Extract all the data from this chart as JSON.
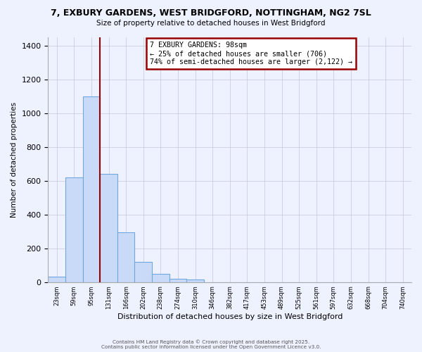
{
  "title1": "7, EXBURY GARDENS, WEST BRIDGFORD, NOTTINGHAM, NG2 7SL",
  "title2": "Size of property relative to detached houses in West Bridgford",
  "xlabel": "Distribution of detached houses by size in West Bridgford",
  "ylabel": "Number of detached properties",
  "bin_labels": [
    "23sqm",
    "59sqm",
    "95sqm",
    "131sqm",
    "166sqm",
    "202sqm",
    "238sqm",
    "274sqm",
    "310sqm",
    "346sqm",
    "382sqm",
    "417sqm",
    "453sqm",
    "489sqm",
    "525sqm",
    "561sqm",
    "597sqm",
    "632sqm",
    "668sqm",
    "704sqm",
    "740sqm"
  ],
  "bar_values": [
    30,
    620,
    1100,
    640,
    295,
    120,
    50,
    20,
    15,
    0,
    0,
    0,
    0,
    0,
    0,
    0,
    0,
    0,
    0,
    0,
    0
  ],
  "bar_color": "#c9daf8",
  "bar_edge_color": "#6fa8dc",
  "vline_index": 2.5,
  "vline_color": "#990000",
  "annotation_title": "7 EXBURY GARDENS: 98sqm",
  "annotation_line1": "← 25% of detached houses are smaller (706)",
  "annotation_line2": "74% of semi-detached houses are larger (2,122) →",
  "annotation_box_edge": "#990000",
  "ylim": [
    0,
    1450
  ],
  "footer1": "Contains HM Land Registry data © Crown copyright and database right 2025.",
  "footer2": "Contains public sector information licensed under the Open Government Licence v3.0.",
  "bg_color": "#eef2ff"
}
